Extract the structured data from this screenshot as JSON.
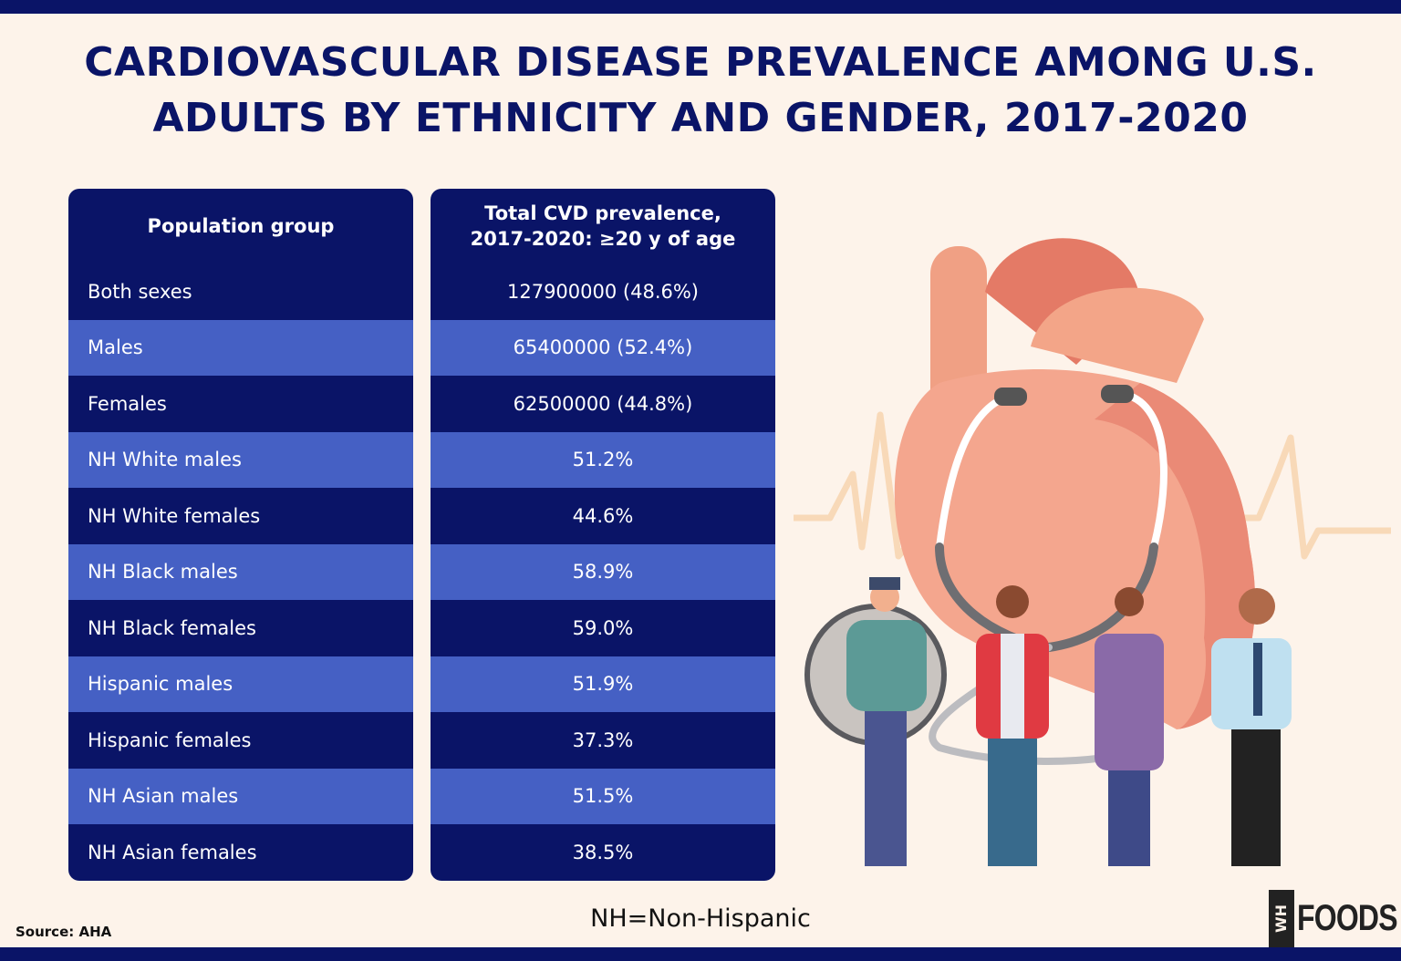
{
  "title": "CARDIOVASCULAR DISEASE PREVALENCE AMONG U.S. ADULTS BY ETHNICITY AND GENDER, 2017-2020",
  "colors": {
    "navy": "#0a1467",
    "row_light": "#4560c4",
    "background": "#fdf3ea"
  },
  "chart_data": {
    "type": "table",
    "columns": [
      "Population group",
      "Total CVD prevalence, 2017-2020: ≥20 y of age"
    ],
    "rows": [
      [
        "Both sexes",
        "127900000 (48.6%)"
      ],
      [
        "Males",
        "65400000 (52.4%)"
      ],
      [
        "Females",
        "62500000 (44.8%)"
      ],
      [
        "NH White males",
        "51.2%"
      ],
      [
        "NH White females",
        "44.6%"
      ],
      [
        "NH Black males",
        "58.9%"
      ],
      [
        "NH Black females",
        "59.0%"
      ],
      [
        "Hispanic males",
        "51.9%"
      ],
      [
        "Hispanic females",
        "37.3%"
      ],
      [
        "NH Asian males",
        "51.5%"
      ],
      [
        "NH Asian females",
        "38.5%"
      ]
    ]
  },
  "footer": {
    "source": "Source: AHA",
    "note": "NH=Non-Hispanic",
    "logo_mark": "WH",
    "logo_text": "FOODS"
  },
  "illustration": {
    "icons": [
      "heart-icon",
      "stethoscope-icon",
      "ecg-line-icon",
      "people-icon"
    ]
  }
}
